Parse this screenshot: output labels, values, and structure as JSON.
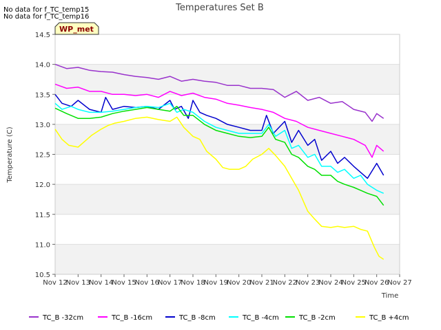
{
  "notices": [
    "No data for f_TC_temp15",
    "No data for f_TC_temp16"
  ],
  "badge": "WP_met",
  "chart_data": {
    "type": "line",
    "title": "Temperatures Set B",
    "xlabel": "Time",
    "ylabel": "Temperature (C)",
    "xlim": [
      12,
      27
    ],
    "ylim": [
      10.5,
      14.5
    ],
    "xticks": [
      12,
      13,
      14,
      15,
      16,
      17,
      18,
      19,
      20,
      21,
      22,
      23,
      24,
      25,
      26,
      27
    ],
    "xtick_labels": [
      "Nov 12",
      "Nov 13",
      "Nov 14",
      "Nov 15",
      "Nov 16",
      "Nov 17",
      "Nov 18",
      "Nov 19",
      "Nov 20",
      "Nov 21",
      "Nov 22",
      "Nov 23",
      "Nov 24",
      "Nov 25",
      "Nov 26",
      "Nov 27"
    ],
    "yticks": [
      10.5,
      11.0,
      11.5,
      12.0,
      12.5,
      13.0,
      13.5,
      14.0,
      14.5
    ],
    "ytick_labels": [
      "10.5",
      "11.0",
      "11.5",
      "12.0",
      "12.5",
      "13.0",
      "13.5",
      "14.0",
      "14.5"
    ],
    "grid": true,
    "legend_position": "bottom",
    "series": [
      {
        "name": "TC_B -32cm",
        "color": "#9932cc",
        "x": [
          12.0,
          12.5,
          13.0,
          13.5,
          14.0,
          14.5,
          15.0,
          15.5,
          16.0,
          16.5,
          17.0,
          17.5,
          18.0,
          18.5,
          19.0,
          19.5,
          20.0,
          20.5,
          21.0,
          21.5,
          22.0,
          22.5,
          23.0,
          23.5,
          24.0,
          24.5,
          25.0,
          25.5,
          25.8,
          26.0,
          26.3
        ],
        "y": [
          14.0,
          13.93,
          13.95,
          13.9,
          13.88,
          13.87,
          13.83,
          13.8,
          13.78,
          13.75,
          13.8,
          13.72,
          13.75,
          13.72,
          13.7,
          13.65,
          13.65,
          13.6,
          13.6,
          13.58,
          13.45,
          13.55,
          13.4,
          13.45,
          13.35,
          13.38,
          13.25,
          13.2,
          13.05,
          13.18,
          13.1
        ]
      },
      {
        "name": "TC_B -16cm",
        "color": "#ff00ff",
        "x": [
          12.0,
          12.5,
          13.0,
          13.5,
          14.0,
          14.5,
          15.0,
          15.5,
          16.0,
          16.5,
          17.0,
          17.5,
          18.0,
          18.5,
          19.0,
          19.5,
          20.0,
          20.5,
          21.0,
          21.5,
          22.0,
          22.5,
          23.0,
          23.5,
          24.0,
          24.5,
          25.0,
          25.5,
          25.8,
          26.0,
          26.3
        ],
        "y": [
          13.67,
          13.6,
          13.62,
          13.55,
          13.55,
          13.5,
          13.5,
          13.48,
          13.5,
          13.45,
          13.55,
          13.48,
          13.52,
          13.45,
          13.42,
          13.35,
          13.32,
          13.28,
          13.25,
          13.2,
          13.1,
          13.05,
          12.95,
          12.9,
          12.85,
          12.8,
          12.75,
          12.65,
          12.45,
          12.65,
          12.55
        ]
      },
      {
        "name": "TC_B -8cm",
        "color": "#0000cd",
        "x": [
          12.0,
          12.3,
          12.7,
          13.0,
          13.5,
          14.0,
          14.2,
          14.5,
          15.0,
          15.5,
          16.0,
          16.5,
          17.0,
          17.2,
          17.5,
          17.8,
          18.0,
          18.3,
          18.6,
          19.0,
          19.5,
          20.0,
          20.5,
          21.0,
          21.2,
          21.5,
          22.0,
          22.3,
          22.6,
          23.0,
          23.3,
          23.6,
          24.0,
          24.3,
          24.6,
          25.0,
          25.3,
          25.6,
          26.0,
          26.3
        ],
        "y": [
          13.5,
          13.35,
          13.3,
          13.4,
          13.25,
          13.2,
          13.45,
          13.25,
          13.3,
          13.28,
          13.3,
          13.25,
          13.4,
          13.25,
          13.3,
          13.1,
          13.4,
          13.2,
          13.15,
          13.1,
          13.0,
          12.95,
          12.9,
          12.9,
          13.15,
          12.85,
          13.05,
          12.7,
          12.9,
          12.65,
          12.75,
          12.4,
          12.55,
          12.35,
          12.45,
          12.3,
          12.2,
          12.1,
          12.35,
          12.15
        ]
      },
      {
        "name": "TC_B -4cm",
        "color": "#00ffff",
        "x": [
          12.0,
          12.3,
          12.7,
          13.0,
          13.5,
          14.0,
          14.5,
          15.0,
          15.5,
          16.0,
          16.5,
          17.0,
          17.3,
          17.6,
          18.0,
          18.5,
          19.0,
          19.5,
          20.0,
          20.5,
          21.0,
          21.3,
          21.6,
          22.0,
          22.3,
          22.6,
          23.0,
          23.3,
          23.6,
          24.0,
          24.3,
          24.6,
          25.0,
          25.3,
          25.6,
          26.0,
          26.3
        ],
        "y": [
          13.35,
          13.25,
          13.3,
          13.25,
          13.2,
          13.2,
          13.22,
          13.25,
          13.28,
          13.3,
          13.28,
          13.35,
          13.2,
          13.25,
          13.2,
          13.05,
          12.95,
          12.9,
          12.85,
          12.85,
          12.85,
          13.0,
          12.8,
          12.9,
          12.6,
          12.65,
          12.45,
          12.5,
          12.3,
          12.3,
          12.2,
          12.25,
          12.1,
          12.15,
          12.0,
          11.9,
          11.85
        ]
      },
      {
        "name": "TC_B -2cm",
        "color": "#00e000",
        "x": [
          12.0,
          12.5,
          13.0,
          13.5,
          14.0,
          14.5,
          15.0,
          15.5,
          16.0,
          16.5,
          17.0,
          17.3,
          17.6,
          18.0,
          18.5,
          19.0,
          19.5,
          20.0,
          20.5,
          21.0,
          21.3,
          21.6,
          22.0,
          22.3,
          22.6,
          23.0,
          23.3,
          23.6,
          24.0,
          24.3,
          24.6,
          25.0,
          25.3,
          25.6,
          26.0,
          26.3
        ],
        "y": [
          13.27,
          13.18,
          13.1,
          13.1,
          13.12,
          13.18,
          13.22,
          13.25,
          13.28,
          13.25,
          13.22,
          13.3,
          13.15,
          13.15,
          13.0,
          12.9,
          12.85,
          12.8,
          12.78,
          12.8,
          12.95,
          12.75,
          12.7,
          12.5,
          12.45,
          12.3,
          12.25,
          12.15,
          12.15,
          12.05,
          12.0,
          11.95,
          11.9,
          11.85,
          11.8,
          11.65
        ]
      },
      {
        "name": "TC_B +4cm",
        "color": "#ffff00",
        "x": [
          12.0,
          12.3,
          12.6,
          13.0,
          13.3,
          13.6,
          14.0,
          14.3,
          14.6,
          15.0,
          15.5,
          16.0,
          16.5,
          17.0,
          17.3,
          17.6,
          18.0,
          18.3,
          18.6,
          19.0,
          19.3,
          19.6,
          20.0,
          20.3,
          20.6,
          21.0,
          21.3,
          21.6,
          22.0,
          22.3,
          22.6,
          23.0,
          23.3,
          23.6,
          24.0,
          24.3,
          24.6,
          25.0,
          25.3,
          25.6,
          25.9,
          26.1,
          26.3
        ],
        "y": [
          12.92,
          12.75,
          12.65,
          12.62,
          12.72,
          12.82,
          12.92,
          12.98,
          13.02,
          13.05,
          13.1,
          13.12,
          13.08,
          13.05,
          13.12,
          12.95,
          12.8,
          12.75,
          12.55,
          12.42,
          12.28,
          12.25,
          12.25,
          12.3,
          12.42,
          12.5,
          12.6,
          12.48,
          12.3,
          12.1,
          11.9,
          11.55,
          11.42,
          11.3,
          11.28,
          11.3,
          11.28,
          11.3,
          11.25,
          11.22,
          10.95,
          10.8,
          10.75
        ]
      }
    ]
  }
}
